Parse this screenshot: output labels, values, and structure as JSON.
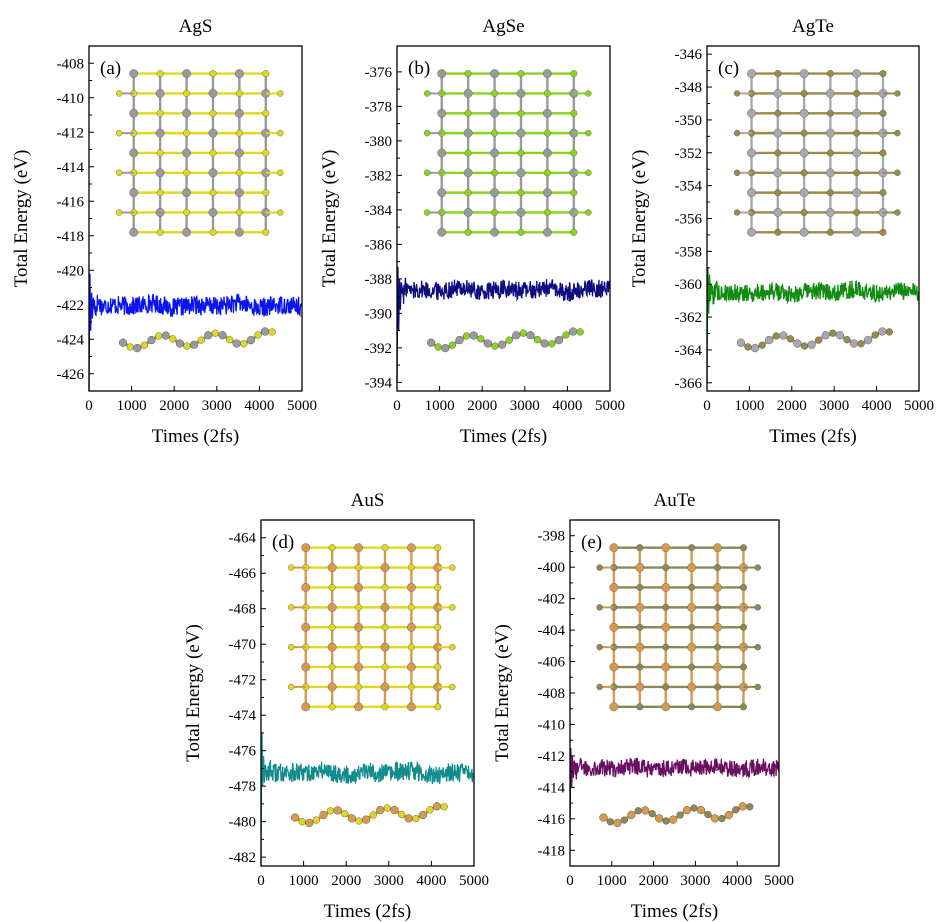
{
  "chart_data": [
    {
      "type": "line",
      "panel_label": "(a)",
      "title": "AgS",
      "xlabel": "Times (2fs)",
      "ylabel": "Total Energy (eV)",
      "xlim": [
        0,
        5000
      ],
      "ylim": [
        -427,
        -407
      ],
      "xticks": [
        0,
        1000,
        2000,
        3000,
        4000,
        5000
      ],
      "yticks": [
        -408,
        -410,
        -412,
        -414,
        -416,
        -418,
        -420,
        -422,
        -424,
        -426
      ],
      "grid": false,
      "color": "#0a14f0",
      "series": [
        {
          "x": [
            0,
            20,
            40,
            60,
            80,
            100,
            150,
            200,
            300,
            500,
            1000,
            1500,
            2000,
            2500,
            3000,
            3500,
            4000,
            4500,
            5000
          ],
          "y": [
            -427,
            -420.2,
            -423.5,
            -421.3,
            -422.8,
            -421.6,
            -422.4,
            -421.8,
            -422.1,
            -422.0,
            -422.1,
            -421.9,
            -422.2,
            -422.0,
            -422.1,
            -421.9,
            -422.2,
            -422.0,
            -422.1
          ]
        }
      ],
      "insets": [
        {
          "kind": "lattice-top-view",
          "colors": [
            "#9a9a9a",
            "#e0d81e"
          ]
        },
        {
          "kind": "lattice-side-view",
          "colors": [
            "#9a9a9a",
            "#e0d81e"
          ]
        }
      ]
    },
    {
      "type": "line",
      "panel_label": "(b)",
      "title": "AgSe",
      "xlabel": "Times (2fs)",
      "ylabel": "Total Energy (eV)",
      "xlim": [
        0,
        5000
      ],
      "ylim": [
        -394.5,
        -374.5
      ],
      "xticks": [
        0,
        1000,
        2000,
        3000,
        4000,
        5000
      ],
      "yticks": [
        -376,
        -378,
        -380,
        -382,
        -384,
        -386,
        -388,
        -390,
        -392,
        -394
      ],
      "grid": false,
      "color": "#0d0d80",
      "series": [
        {
          "x": [
            0,
            20,
            40,
            60,
            80,
            100,
            150,
            200,
            300,
            500,
            1000,
            1500,
            2000,
            2500,
            3000,
            3500,
            4000,
            4500,
            5000
          ],
          "y": [
            -394,
            -387.3,
            -391.0,
            -388.0,
            -389.8,
            -388.2,
            -389.0,
            -388.4,
            -388.7,
            -388.6,
            -388.7,
            -388.5,
            -388.8,
            -388.6,
            -388.7,
            -388.5,
            -388.8,
            -388.5,
            -388.6
          ]
        }
      ],
      "insets": [
        {
          "kind": "lattice-top-view",
          "colors": [
            "#9a9a9a",
            "#8ad41e"
          ]
        },
        {
          "kind": "lattice-side-view",
          "colors": [
            "#9a9a9a",
            "#8ad41e"
          ]
        }
      ]
    },
    {
      "type": "line",
      "panel_label": "(c)",
      "title": "AgTe",
      "xlabel": "Times (2fs)",
      "ylabel": "Total Energy (eV)",
      "xlim": [
        0,
        5000
      ],
      "ylim": [
        -366.5,
        -345.5
      ],
      "xticks": [
        0,
        1000,
        2000,
        3000,
        4000,
        5000
      ],
      "yticks": [
        -346,
        -348,
        -350,
        -352,
        -354,
        -356,
        -358,
        -360,
        -362,
        -364,
        -366
      ],
      "grid": false,
      "color": "#108c10",
      "series": [
        {
          "x": [
            0,
            20,
            40,
            60,
            80,
            100,
            150,
            200,
            300,
            500,
            1000,
            1500,
            2000,
            2500,
            3000,
            3500,
            4000,
            4500,
            5000
          ],
          "y": [
            -366,
            -359.0,
            -361.8,
            -359.4,
            -361.0,
            -360.0,
            -360.8,
            -360.2,
            -360.6,
            -360.5,
            -360.6,
            -360.4,
            -360.6,
            -360.4,
            -360.5,
            -360.3,
            -360.6,
            -360.4,
            -360.5
          ]
        }
      ],
      "insets": [
        {
          "kind": "lattice-top-view",
          "colors": [
            "#a8a8b0",
            "#9c8a48"
          ]
        },
        {
          "kind": "lattice-side-view",
          "colors": [
            "#a8a8b0",
            "#9c8a48"
          ]
        }
      ]
    },
    {
      "type": "line",
      "panel_label": "(d)",
      "title": "AuS",
      "xlabel": "Times (2fs)",
      "ylabel": "Total Energy (eV)",
      "xlim": [
        0,
        5000
      ],
      "ylim": [
        -482.5,
        -463
      ],
      "xticks": [
        0,
        1000,
        2000,
        3000,
        4000,
        5000
      ],
      "yticks": [
        -464,
        -466,
        -468,
        -470,
        -472,
        -474,
        -476,
        -478,
        -480,
        -482
      ],
      "grid": false,
      "color": "#128c8c",
      "series": [
        {
          "x": [
            0,
            20,
            40,
            60,
            80,
            100,
            150,
            200,
            300,
            500,
            1000,
            1500,
            2000,
            2500,
            3000,
            3500,
            4000,
            4500,
            5000
          ],
          "y": [
            -482.5,
            -475.0,
            -478.0,
            -476.3,
            -477.8,
            -476.8,
            -477.5,
            -477.0,
            -477.3,
            -477.2,
            -477.3,
            -477.1,
            -477.4,
            -477.2,
            -477.3,
            -477.1,
            -477.4,
            -477.2,
            -477.3
          ]
        }
      ],
      "insets": [
        {
          "kind": "lattice-top-view",
          "colors": [
            "#d49a50",
            "#e0d81e"
          ]
        },
        {
          "kind": "lattice-side-view",
          "colors": [
            "#d49a50",
            "#e0d81e"
          ]
        }
      ]
    },
    {
      "type": "line",
      "panel_label": "(e)",
      "title": "AuTe",
      "xlabel": "Times (2fs)",
      "ylabel": "Total Energy (eV)",
      "xlim": [
        0,
        5000
      ],
      "ylim": [
        -419,
        -397
      ],
      "xticks": [
        0,
        1000,
        2000,
        3000,
        4000,
        5000
      ],
      "yticks": [
        -398,
        -400,
        -402,
        -404,
        -406,
        -408,
        -410,
        -412,
        -414,
        -416,
        -418
      ],
      "grid": false,
      "color": "#6a0f62",
      "series": [
        {
          "x": [
            0,
            20,
            40,
            60,
            80,
            100,
            150,
            200,
            300,
            500,
            1000,
            1500,
            2000,
            2500,
            3000,
            3500,
            4000,
            4500,
            5000
          ],
          "y": [
            -417,
            -411.5,
            -414.0,
            -412.0,
            -413.4,
            -412.3,
            -413.0,
            -412.5,
            -412.8,
            -412.7,
            -412.8,
            -412.6,
            -412.9,
            -412.7,
            -412.8,
            -412.6,
            -412.9,
            -412.7,
            -412.8
          ]
        }
      ],
      "insets": [
        {
          "kind": "lattice-top-view",
          "colors": [
            "#d49a50",
            "#8a8a58"
          ]
        },
        {
          "kind": "lattice-side-view",
          "colors": [
            "#d49a50",
            "#8a8a58"
          ]
        }
      ]
    }
  ]
}
